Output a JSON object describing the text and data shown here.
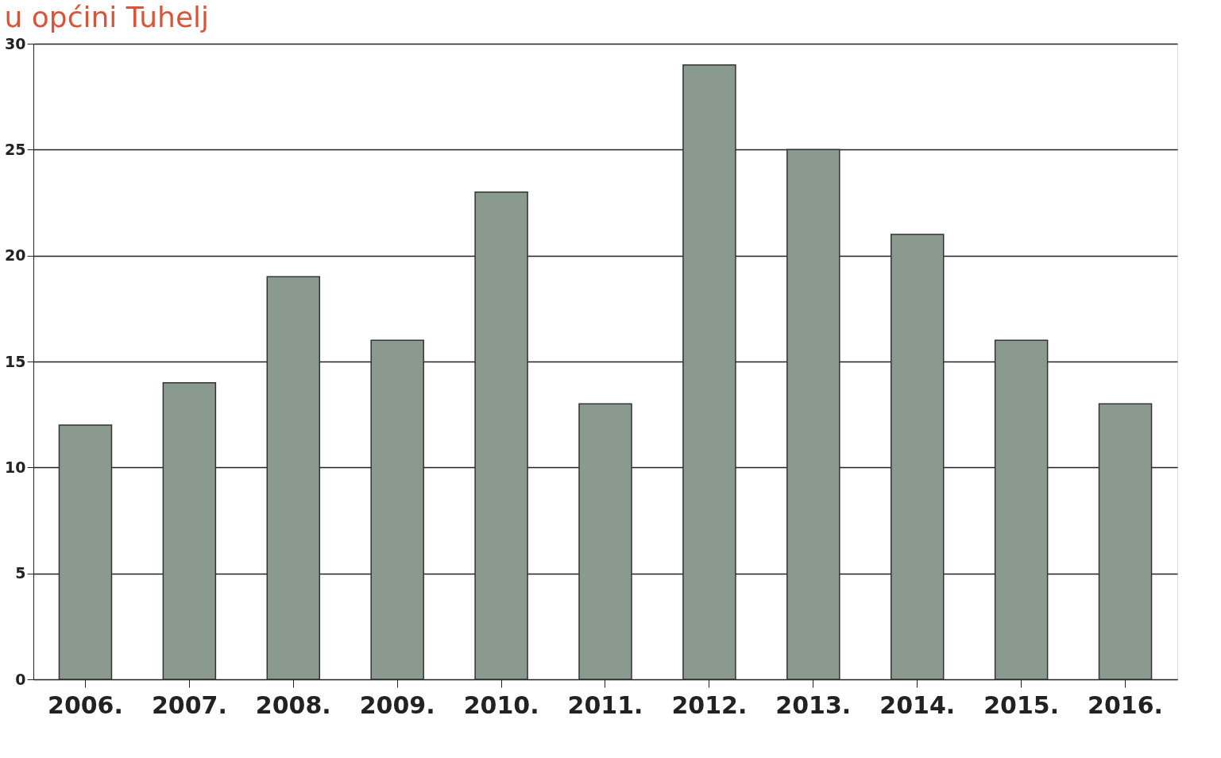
{
  "chart_data": {
    "type": "bar",
    "title": "u općini Tuhelj",
    "categories": [
      "2006.",
      "2007.",
      "2008.",
      "2009.",
      "2010.",
      "2011.",
      "2012.",
      "2013.",
      "2014.",
      "2015.",
      "2016."
    ],
    "values": [
      12,
      14,
      19,
      16,
      23,
      13,
      29,
      25,
      21,
      16,
      13
    ],
    "color": "#8a9a8e",
    "ylim": [
      0,
      30
    ],
    "yticks": [
      0,
      5,
      10,
      15,
      20,
      25,
      30
    ],
    "grid": "y"
  }
}
